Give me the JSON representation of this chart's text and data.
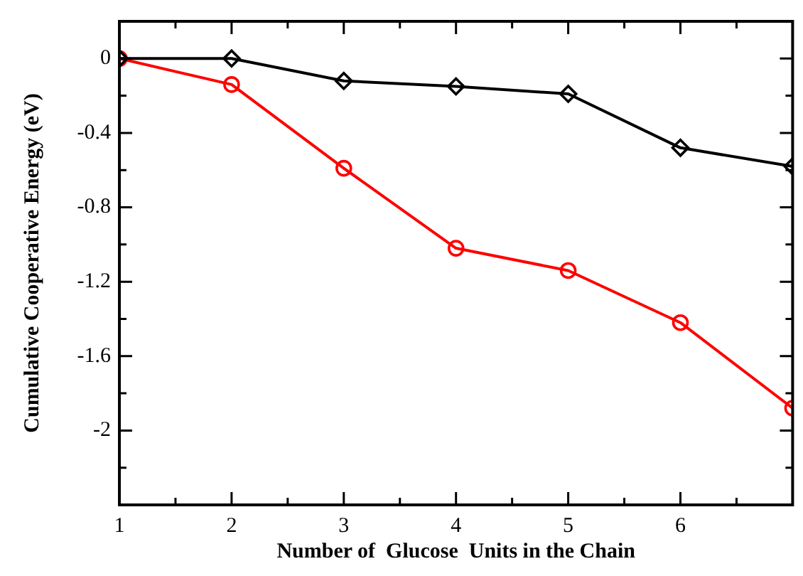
{
  "chart_data": {
    "type": "line",
    "xlabel": "Number of  Glucose  Units in the Chain",
    "ylabel": "Cumulative Cooperative Energy (eV)",
    "x": [
      1,
      2,
      3,
      4,
      5,
      6,
      7
    ],
    "series": [
      {
        "color": "#000000",
        "marker": "diamond",
        "values": [
          0,
          0,
          -0.12,
          -0.15,
          -0.19,
          -0.48,
          -0.58
        ]
      },
      {
        "color": "#ff0000",
        "marker": "circle",
        "values": [
          0,
          -0.14,
          -0.59,
          -1.02,
          -1.14,
          -1.42,
          -1.88
        ]
      }
    ],
    "xlim": [
      1,
      7
    ],
    "ylim": [
      -2.4,
      0.2
    ],
    "xticks": [
      1,
      {
        "value": 1.5,
        "label": null
      },
      2,
      {
        "value": 2.5,
        "label": null
      },
      3,
      {
        "value": 3.5,
        "label": null
      },
      4,
      {
        "value": 4.5,
        "label": null
      },
      5,
      {
        "value": 5.5,
        "label": null
      },
      6,
      {
        "value": 6.5,
        "label": null
      }
    ],
    "yticks": [
      {
        "value": -2.2,
        "label": null
      },
      -2,
      {
        "value": -1.8,
        "label": null
      },
      -1.6,
      {
        "value": -1.4,
        "label": null
      },
      -1.2,
      {
        "value": -1,
        "label": null
      },
      -0.8,
      {
        "value": -0.6,
        "label": null
      },
      -0.4,
      {
        "value": -0.2,
        "label": null
      },
      0
    ],
    "grid": false,
    "legend": false,
    "line_style": "solid"
  }
}
